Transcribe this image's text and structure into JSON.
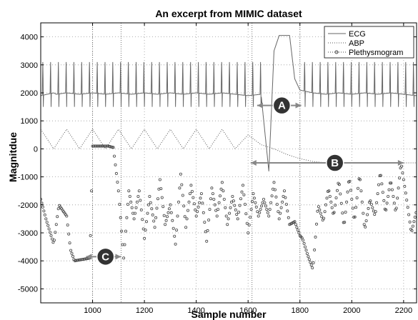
{
  "chart_data": {
    "type": "line",
    "title": "An excerpt from MIMIC dataset",
    "xlabel": "Sample number",
    "ylabel": "Magnitdue",
    "xlim": [
      800,
      2250
    ],
    "ylim": [
      -5500,
      4500
    ],
    "xticks": [
      1000,
      1200,
      1400,
      1600,
      1800,
      2000,
      2200
    ],
    "yticks": [
      -5000,
      -4000,
      -3000,
      -2000,
      -1000,
      0,
      1000,
      2000,
      3000,
      4000
    ],
    "grid": true,
    "legend_position": "top-right",
    "series": [
      {
        "name": "ECG",
        "style": "solid",
        "color": "#666666",
        "x": [
          800,
          850,
          860,
          900,
          950,
          1000,
          1050,
          1100,
          1150,
          1200,
          1250,
          1300,
          1350,
          1400,
          1450,
          1500,
          1550,
          1600,
          1650,
          1680,
          1700,
          1720,
          1740,
          1760,
          1780,
          1800,
          1850,
          1900,
          1950,
          2000,
          2050,
          2100,
          2150,
          2200,
          2250
        ],
        "y": [
          1900,
          2000,
          1950,
          2000,
          1950,
          2000,
          1950,
          2000,
          1950,
          2000,
          1950,
          2000,
          1950,
          2000,
          1950,
          2000,
          1950,
          1900,
          1950,
          -800,
          3500,
          4050,
          4050,
          4050,
          2500,
          2100,
          2000,
          1950,
          2000,
          1950,
          2000,
          1950,
          2000,
          1950,
          1900
        ],
        "peak_value": 3100,
        "peak_x": [
          808,
          838,
          868,
          898,
          928,
          958,
          988,
          1018,
          1048,
          1078,
          1108,
          1138,
          1168,
          1198,
          1228,
          1258,
          1288,
          1318,
          1348,
          1378,
          1408,
          1438,
          1468,
          1498,
          1528,
          1558,
          1588,
          1618,
          1648,
          1818,
          1848,
          1878,
          1908,
          1938,
          1968,
          1998,
          2028,
          2058,
          2088,
          2118,
          2148,
          2178,
          2208,
          2238
        ]
      },
      {
        "name": "ABP",
        "style": "dotted",
        "color": "#555555",
        "x": [
          800,
          850,
          900,
          950,
          1000,
          1050,
          1100,
          1150,
          1200,
          1250,
          1300,
          1350,
          1400,
          1450,
          1500,
          1550,
          1600,
          1650,
          1700,
          1750,
          1800,
          1850,
          1900,
          2250
        ],
        "y": [
          700,
          0,
          700,
          0,
          700,
          0,
          700,
          0,
          700,
          0,
          700,
          0,
          700,
          0,
          700,
          0,
          500,
          150,
          0,
          -200,
          -350,
          -450,
          -500,
          -500
        ]
      },
      {
        "name": "Plethysmogram",
        "style": "circles",
        "color": "#444444",
        "x": [
          800,
          820,
          850,
          870,
          900,
          915,
          930,
          990,
          1000,
          1030,
          1060,
          1080,
          1100,
          1120,
          1140,
          1160,
          1180,
          1200,
          1220,
          1240,
          1260,
          1280,
          1300,
          1320,
          1340,
          1360,
          1380,
          1400,
          1420,
          1440,
          1460,
          1480,
          1500,
          1520,
          1540,
          1560,
          1580,
          1600,
          1620,
          1640,
          1660,
          1680,
          1700,
          1720,
          1740,
          1760,
          1780,
          1800,
          1810,
          1830,
          1850,
          1870,
          1890,
          1910,
          1930,
          1950,
          1970,
          1990,
          2010,
          2030,
          2050,
          2070,
          2090,
          2110,
          2130,
          2150,
          2170,
          2190,
          2210,
          2230,
          2250
        ],
        "y": [
          -1800,
          -2500,
          -3400,
          -2000,
          -2400,
          -3600,
          -4000,
          -3900,
          100,
          100,
          100,
          50,
          -1500,
          -3900,
          -1500,
          -2500,
          -1500,
          -3200,
          -1700,
          -2800,
          -1100,
          -2700,
          -2000,
          -3400,
          -900,
          -2800,
          -1300,
          -2400,
          -1600,
          -3300,
          -1400,
          -2400,
          -1200,
          -2700,
          -1700,
          -2500,
          -1300,
          -3000,
          -1600,
          -2400,
          -1800,
          -2400,
          -1200,
          -2500,
          -1500,
          -2700,
          -2600,
          -3100,
          -3200,
          -3800,
          -4300,
          -2000,
          -2600,
          -1400,
          -2400,
          -1100,
          -2800,
          -1000,
          -2600,
          -900,
          -2900,
          -1800,
          -2400,
          -800,
          -2300,
          -1100,
          -2300,
          -500,
          -1700,
          -3000,
          -2200
        ]
      }
    ],
    "annotations": [
      {
        "label": "A",
        "x": 1730,
        "y": 1550,
        "arrow_from": 1635,
        "arrow_to": 1805
      },
      {
        "label": "B",
        "x": 1935,
        "y": -500,
        "arrow_from": 1610,
        "arrow_to": 2200
      },
      {
        "label": "C",
        "x": 1050,
        "y": -3850,
        "arrow_from": 975,
        "arrow_to": 1110
      }
    ],
    "vlines": [
      1000,
      1110,
      1615,
      1800
    ]
  },
  "colors": {
    "axis": "#000000",
    "grid": "#999999",
    "marker_fill": "#333333",
    "arrow": "#888888"
  }
}
